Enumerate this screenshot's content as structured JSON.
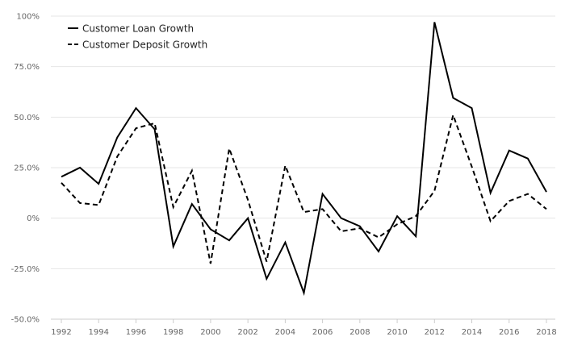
{
  "chart_data": {
    "type": "line",
    "title": "",
    "xlabel": "",
    "ylabel": "",
    "x": [
      1992,
      1993,
      1994,
      1995,
      1996,
      1997,
      1998,
      1999,
      2000,
      2001,
      2002,
      2003,
      2004,
      2005,
      2006,
      2007,
      2008,
      2009,
      2010,
      2011,
      2012,
      2013,
      2014,
      2015,
      2016,
      2017,
      2018
    ],
    "x_tick_labels": [
      "1992",
      "1994",
      "1996",
      "1998",
      "2000",
      "2002",
      "2004",
      "2006",
      "2008",
      "2010",
      "2012",
      "2014",
      "2016",
      "2018"
    ],
    "x_tick_values": [
      1992,
      1994,
      1996,
      1998,
      2000,
      2002,
      2004,
      2006,
      2008,
      2010,
      2012,
      2014,
      2016,
      2018
    ],
    "y_tick_labels": [
      "100%",
      "75.0%",
      "50.0%",
      "25.0%",
      "0%",
      "-25.0%",
      "-50.0%"
    ],
    "y_tick_values": [
      100,
      75,
      50,
      25,
      0,
      -25,
      -50
    ],
    "ylim": [
      -50,
      100
    ],
    "xlim": [
      1992,
      2018
    ],
    "grid": "horizontal",
    "legend_position": "top-left",
    "series": [
      {
        "name": "Customer Loan Growth",
        "style": "solid",
        "color": "#000000",
        "values": [
          20.5,
          25,
          17,
          40,
          54.5,
          44,
          -14,
          7,
          -5.5,
          -11,
          0,
          -30,
          -12,
          -37,
          12,
          0,
          -4,
          -16.5,
          1,
          -9,
          97,
          59.5,
          54.5,
          12.5,
          33.5,
          29.5,
          13
        ]
      },
      {
        "name": "Customer Deposit Growth",
        "style": "dashed",
        "color": "#000000",
        "values": [
          17.5,
          7.5,
          6.5,
          30.5,
          44.5,
          47,
          5.5,
          23.5,
          -22.5,
          34.5,
          9,
          -21.5,
          26,
          3,
          4.5,
          -6.5,
          -5,
          -9.5,
          -3,
          1,
          13.5,
          51,
          25.5,
          -1.5,
          8.5,
          12,
          4.5
        ]
      }
    ]
  }
}
